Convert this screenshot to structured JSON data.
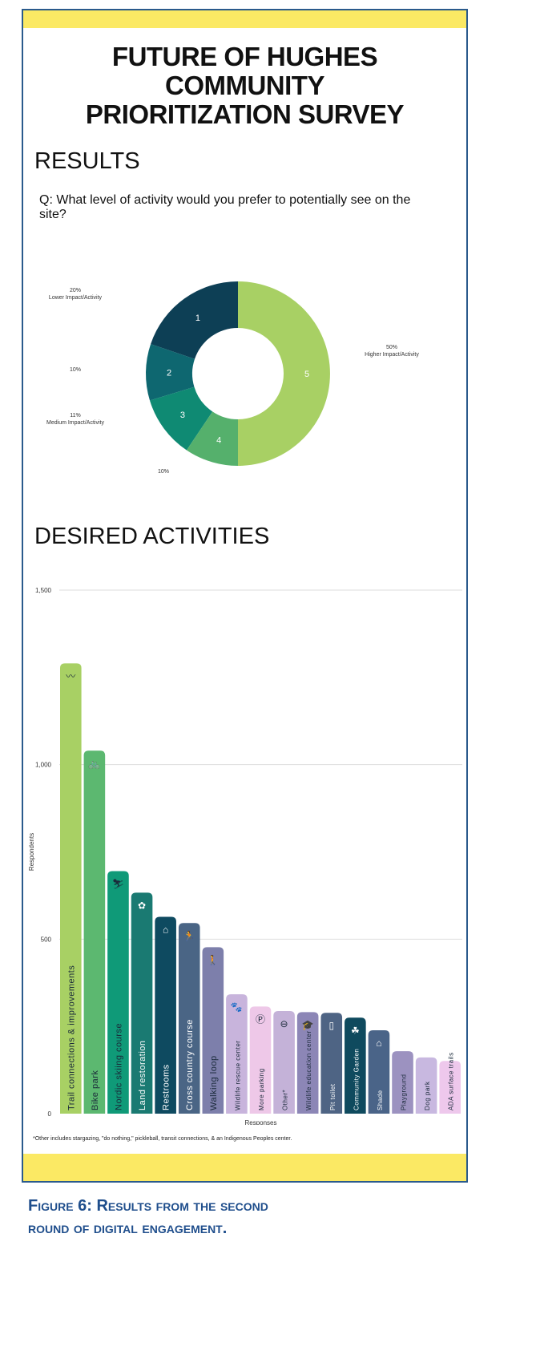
{
  "title_lines": [
    "FUTURE OF HUGHES",
    "COMMUNITY",
    "PRIORITIZATION SURVEY"
  ],
  "results_heading": "RESULTS",
  "question": "Q: What level of activity would you prefer to potentially see on the site?",
  "activities_heading": "DESIRED ACTIVITIES",
  "footnote": "*Other includes stargazing, \"do nothing,\" pickleball, transit connections, & an Indigenous Peoples center.",
  "caption_lines": [
    "Figure 6: Results from the second",
    "round of digital engagement."
  ],
  "colors": {
    "band": "#fbe964",
    "border": "#2a5a8c",
    "caption": "#1f4e8c"
  },
  "chart_data": [
    {
      "type": "pie",
      "title": "What level of activity would you prefer to potentially see on the site?",
      "categories": [
        "1",
        "2",
        "3",
        "4",
        "5"
      ],
      "values": [
        20,
        10,
        11,
        10,
        50
      ],
      "labels": [
        "20% Lower Impact/Activity",
        "10%",
        "11% Medium Impact/Activity",
        "10%",
        "50% Higher Impact/Activity"
      ],
      "pct_labels": [
        "20%",
        "10%",
        "11%",
        "10%",
        "50%"
      ],
      "sub_labels": [
        "Lower Impact/Activity",
        "",
        "Medium Impact/Activity",
        "",
        "Higher Impact/Activity"
      ],
      "colors": [
        "#0d3f55",
        "#0e6770",
        "#0f8a73",
        "#55b06c",
        "#a8d064"
      ]
    },
    {
      "type": "bar",
      "title": "DESIRED ACTIVITIES",
      "xlabel": "Responses",
      "ylabel": "Respondents",
      "ylim": [
        0,
        1500
      ],
      "yticks": [
        0,
        500,
        1000,
        1500
      ],
      "ytick_labels": [
        "0",
        "500",
        "1,000",
        "1,500"
      ],
      "grid": true,
      "categories": [
        "Trail connections & improvements",
        "Bike park",
        "Nordic skiing course",
        "Land restoration",
        "Restrooms",
        "Cross country course",
        "Walking loop",
        "Wildlife rescue center",
        "More parking",
        "Other*",
        "Wildlife education center",
        "Pit toilet",
        "Community Garden",
        "Shade",
        "Playground",
        "Dog park",
        "ADA surface trails"
      ],
      "values": [
        1290,
        1040,
        695,
        633,
        564,
        546,
        477,
        342,
        307,
        294,
        291,
        289,
        275,
        239,
        179,
        161,
        151
      ],
      "colors": [
        "#a8d064",
        "#5cb870",
        "#0f9a78",
        "#1a7a72",
        "#0e4a60",
        "#4a6585",
        "#7d7fab",
        "#c8b4dc",
        "#eec8e8",
        "#c4b2d8",
        "#8c86b6",
        "#4e6484",
        "#0f4a5e",
        "#4a6488",
        "#9c92c0",
        "#c8b8e0",
        "#eec8ec"
      ],
      "icons": [
        "trail-icon",
        "bicycle-icon",
        "skier-icon",
        "restoration-icon",
        "restroom-icon",
        "runner-icon",
        "walker-icon",
        "paw-icon",
        "parking-icon",
        "ellipsis-icon",
        "graduation-cap-icon",
        "toilet-icon",
        "garden-icon",
        "shade-icon",
        "",
        "",
        ""
      ],
      "icon_glyphs": [
        "〰",
        "🚲",
        "⛷",
        "✿",
        "⌂",
        "🏃",
        "🚶",
        "🐾",
        "Ⓟ",
        "⊖",
        "🎓",
        "▯",
        "☘",
        "⌂",
        "",
        "",
        ""
      ]
    }
  ]
}
